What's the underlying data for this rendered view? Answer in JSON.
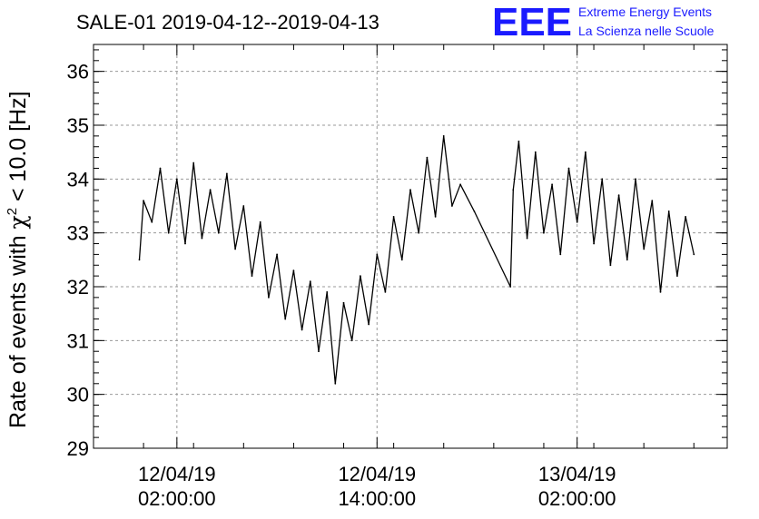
{
  "chart_data": {
    "type": "line",
    "title": "SALE-01 2019-04-12--2019-04-13",
    "ylabel_prefix": "Rate of events with ",
    "ylabel_chi": "χ",
    "ylabel_exp": "2",
    "ylabel_suffix": " < 10.0 [Hz]",
    "xlabel": "",
    "ylim": [
      29,
      36.5
    ],
    "xlim": [
      "2019-04-11 21:00:00",
      "2019-04-13 11:00:00"
    ],
    "yticks": [
      29,
      30,
      31,
      32,
      33,
      34,
      35,
      36
    ],
    "xticks": [
      {
        "x": "2019-04-12 02:00:00",
        "date": "12/04/19",
        "time": "02:00:00"
      },
      {
        "x": "2019-04-12 14:00:00",
        "date": "12/04/19",
        "time": "14:00:00"
      },
      {
        "x": "2019-04-13 02:00:00",
        "date": "13/04/19",
        "time": "02:00:00"
      }
    ],
    "grid": true,
    "series": [
      {
        "color": "#000000",
        "x": [
          "2019-04-11 23:45:00",
          "2019-04-12 00:00:00",
          "2019-04-12 00:30:00",
          "2019-04-12 01:00:00",
          "2019-04-12 01:30:00",
          "2019-04-12 02:00:00",
          "2019-04-12 02:30:00",
          "2019-04-12 03:00:00",
          "2019-04-12 03:30:00",
          "2019-04-12 04:00:00",
          "2019-04-12 04:30:00",
          "2019-04-12 05:00:00",
          "2019-04-12 05:30:00",
          "2019-04-12 06:00:00",
          "2019-04-12 06:30:00",
          "2019-04-12 07:00:00",
          "2019-04-12 07:30:00",
          "2019-04-12 08:00:00",
          "2019-04-12 08:30:00",
          "2019-04-12 09:00:00",
          "2019-04-12 09:30:00",
          "2019-04-12 10:00:00",
          "2019-04-12 10:30:00",
          "2019-04-12 11:00:00",
          "2019-04-12 11:30:00",
          "2019-04-12 12:00:00",
          "2019-04-12 12:30:00",
          "2019-04-12 13:00:00",
          "2019-04-12 13:30:00",
          "2019-04-12 14:00:00",
          "2019-04-12 14:30:00",
          "2019-04-12 15:00:00",
          "2019-04-12 15:30:00",
          "2019-04-12 16:00:00",
          "2019-04-12 16:30:00",
          "2019-04-12 17:00:00",
          "2019-04-12 17:30:00",
          "2019-04-12 18:00:00",
          "2019-04-12 18:30:00",
          "2019-04-12 19:00:00",
          "2019-04-12 19:50:00",
          "2019-04-12 22:00:00",
          "2019-04-12 22:10:00",
          "2019-04-12 22:30:00",
          "2019-04-12 23:00:00",
          "2019-04-12 23:30:00",
          "2019-04-13 00:00:00",
          "2019-04-13 00:30:00",
          "2019-04-13 01:00:00",
          "2019-04-13 01:30:00",
          "2019-04-13 02:00:00",
          "2019-04-13 02:30:00",
          "2019-04-13 03:00:00",
          "2019-04-13 03:30:00",
          "2019-04-13 04:00:00",
          "2019-04-13 04:30:00",
          "2019-04-13 05:00:00",
          "2019-04-13 05:30:00",
          "2019-04-13 06:00:00",
          "2019-04-13 06:30:00",
          "2019-04-13 07:00:00",
          "2019-04-13 07:30:00",
          "2019-04-13 08:00:00",
          "2019-04-13 08:30:00",
          "2019-04-13 09:00:00"
        ],
        "y": [
          32.5,
          33.6,
          33.2,
          34.2,
          33.0,
          34.0,
          32.8,
          34.3,
          32.9,
          33.8,
          33.0,
          34.1,
          32.7,
          33.5,
          32.2,
          33.2,
          31.8,
          32.6,
          31.4,
          32.3,
          31.2,
          32.1,
          30.8,
          31.9,
          30.2,
          31.7,
          31.0,
          32.2,
          31.3,
          32.6,
          31.9,
          33.3,
          32.5,
          33.8,
          33.0,
          34.4,
          33.3,
          34.8,
          33.5,
          33.9,
          33.4,
          32.0,
          33.8,
          34.7,
          32.9,
          34.5,
          33.0,
          33.9,
          32.6,
          34.2,
          33.2,
          34.5,
          32.8,
          34.0,
          32.4,
          33.7,
          32.5,
          34.0,
          32.7,
          33.6,
          31.9,
          33.4,
          32.2,
          33.3,
          32.6
        ]
      }
    ]
  },
  "logo": {
    "mark": "EEE",
    "line1": "Extreme Energy Events",
    "line2": "La Scienza nelle Scuole"
  }
}
